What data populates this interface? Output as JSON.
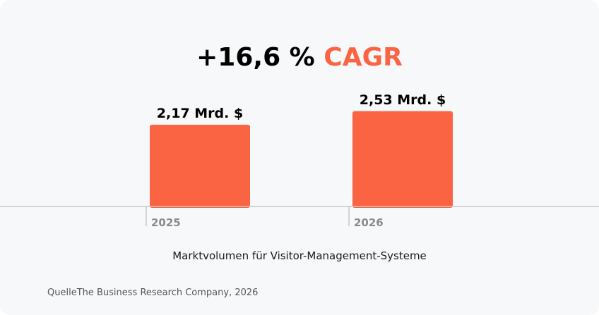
{
  "headline": {
    "growth": "+16,6 %",
    "label": "CAGR"
  },
  "caption": "Marktvolumen für Visitor-Management-Systeme",
  "source": "QuelleThe Business Research Company, 2026",
  "colors": {
    "bar": "#fa6442",
    "accent": "#fa6442",
    "background": "#f7f8fa",
    "axis": "#c8c8c8",
    "tick_label": "#8a8a8a"
  },
  "chart_data": {
    "type": "bar",
    "categories": [
      "2025",
      "2026"
    ],
    "values": [
      2.17,
      2.53
    ],
    "value_labels": [
      "2,17 Mrd. $",
      "2,53 Mrd. $"
    ],
    "unit": "Mrd. $",
    "title": "",
    "xlabel": "",
    "ylabel": "",
    "grid": false,
    "legend": "none"
  }
}
